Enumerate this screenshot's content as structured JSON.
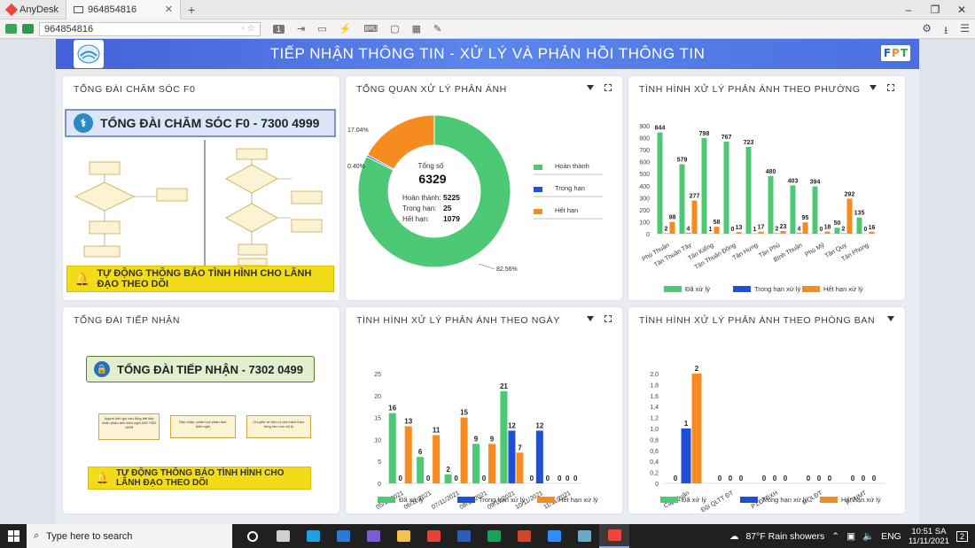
{
  "anydesk": {
    "app_name": "AnyDesk",
    "tab_label": "964854816",
    "address": "964854816",
    "page_number": "1"
  },
  "banner": {
    "title": "TIẾP NHẬN THÔNG TIN - XỬ LÝ VÀ PHẢN HỒI THÔNG TIN",
    "brand": [
      "F",
      "P",
      "T"
    ],
    "brand_colors": [
      "#1e60c8",
      "#f08a1c",
      "#2ca84c"
    ]
  },
  "panels": {
    "f0": {
      "title": "TỔNG ĐÀI CHĂM SÓC F0",
      "hotline": "TỔNG ĐÀI CHĂM SÓC F0 - 7300 4999",
      "alert": "TỰ ĐỘNG THÔNG BÁO TÌNH HÌNH CHO LÃNH ĐẠO THEO DÕI"
    },
    "reception": {
      "title": "TỔNG ĐÀI TIẾP NHẬN",
      "hotline": "TỔNG ĐÀI TIẾP NHẬN - 7302 0499",
      "alert": "TỰ ĐỘNG THÔNG BÁO TÌNH HÌNH CHO LÃNH ĐẠO THEO DÕI",
      "flow": [
        "Người dân gọi vào tổng đài tiếp nhận phản ánh kiến nghị 028 7302 0499",
        "Tiếp nhận, phân loại phản ánh, kiến nghị",
        "Chuyển về đơn vị chủ trách theo từng khu vực xử lý"
      ]
    },
    "overview": {
      "title": "TỔNG QUAN XỬ LÝ PHẢN ÁNH",
      "total_label": "Tổng số",
      "total": "6329",
      "rows": [
        {
          "label": "Hoàn thành:",
          "value": "5225"
        },
        {
          "label": "Trong hạn:",
          "value": "25"
        },
        {
          "label": "Hết hạn:",
          "value": "1079"
        }
      ]
    },
    "ward": {
      "title": "TÌNH HÌNH XỬ LÝ PHẢN ÁNH THEO PHƯỜNG"
    },
    "daily": {
      "title": "TÌNH HÌNH XỬ LÝ PHẢN ÁNH THEO NGÀY"
    },
    "dept": {
      "title": "TÌNH HÌNH XỬ LÝ PHẢN ÁNH THEO PHÒNG BAN"
    }
  },
  "colors": {
    "green": "#4dc875",
    "blue": "#1f4fd6",
    "orange": "#f68b1f"
  },
  "chart_data": [
    {
      "id": "overview",
      "type": "pie",
      "title": "TỔNG QUAN XỬ LÝ PHẢN ÁNH",
      "labels": [
        "Hoàn thành",
        "Trong hạn",
        "Hết hạn"
      ],
      "values": [
        5225,
        25,
        1079
      ],
      "percent_labels": [
        "82.56%",
        "0.40%",
        "17.04%"
      ]
    },
    {
      "id": "ward",
      "type": "bar",
      "title": "TÌNH HÌNH XỬ LÝ PHẢN ÁNH THEO PHƯỜNG",
      "categories": [
        "Phú Thuận",
        "Tân Thuận Tây",
        "Tân Kiểng",
        "Tân Thuận Đông",
        "Tân Hưng",
        "Tân Phú",
        "Bình Thuận",
        "Phú Mỹ",
        "Tân Quy",
        "Tân Phong"
      ],
      "series": [
        {
          "name": "Đã xử lý",
          "values": [
            844,
            579,
            798,
            767,
            723,
            480,
            403,
            394,
            50,
            135
          ]
        },
        {
          "name": "Trong hạn xử lý",
          "values": [
            2,
            4,
            1,
            0,
            1,
            2,
            4,
            0,
            2,
            0
          ]
        },
        {
          "name": "Hết hạn xử lý",
          "values": [
            98,
            277,
            58,
            13,
            17,
            23,
            95,
            18,
            292,
            16
          ]
        }
      ],
      "yticks": [
        0,
        100,
        200,
        300,
        400,
        500,
        600,
        700,
        800,
        900
      ],
      "ylim": [
        0,
        900
      ]
    },
    {
      "id": "daily",
      "type": "bar",
      "title": "TÌNH HÌNH XỬ LÝ PHẢN ÁNH THEO NGÀY",
      "categories": [
        "05/11/2021",
        "06/11/2021",
        "07/11/2021",
        "08/11/2021",
        "09/11/2021",
        "10/11/2021",
        "11/11/2021"
      ],
      "series": [
        {
          "name": "Đã xử lý",
          "values": [
            16,
            6,
            2,
            9,
            21,
            0,
            0
          ]
        },
        {
          "name": "Trong hạn xử lý",
          "values": [
            0,
            0,
            0,
            0,
            12,
            12,
            0
          ]
        },
        {
          "name": "Hết hạn xử lý",
          "values": [
            13,
            11,
            15,
            9,
            7,
            0,
            0
          ]
        }
      ],
      "yticks": [
        0,
        5,
        10,
        15,
        20,
        25
      ],
      "ylim": [
        0,
        25
      ]
    },
    {
      "id": "dept",
      "type": "bar",
      "title": "TÌNH HÌNH XỬ LÝ PHẢN ÁNH THEO PHÒNG BAN",
      "categories": [
        "Cấp Quận",
        "Đội QLTT ĐT",
        "P.LĐTBXH",
        "P.QLĐT",
        "P.TNMT"
      ],
      "series": [
        {
          "name": "Đã xử lý",
          "values": [
            0,
            0,
            0,
            0,
            0
          ]
        },
        {
          "name": "Trong hạn xử lý",
          "values": [
            1,
            0,
            0,
            0,
            0
          ]
        },
        {
          "name": "Hết hạn xử lý",
          "values": [
            2,
            0,
            0,
            0,
            0
          ]
        }
      ],
      "yticks": [
        "0",
        "0,2",
        "0,4",
        "0,6",
        "0,8",
        "1,0",
        "1,2",
        "1,4",
        "1,6",
        "1,8",
        "2,0"
      ],
      "ylim": [
        0,
        2
      ]
    }
  ],
  "taskbar": {
    "search_placeholder": "Type here to search",
    "weather": "87°F  Rain showers",
    "lang": "ENG",
    "time": "10:51 SA",
    "date": "11/11/2021",
    "notif": "2",
    "apps": [
      {
        "name": "task-view",
        "color": "#cfcfcf"
      },
      {
        "name": "edge",
        "color": "#1fa0e0"
      },
      {
        "name": "mail",
        "color": "#2b7bd6"
      },
      {
        "name": "viber",
        "color": "#7b5ed6"
      },
      {
        "name": "explorer",
        "color": "#f2c14e"
      },
      {
        "name": "chrome",
        "color": "#e54335"
      },
      {
        "name": "word",
        "color": "#2b5eb8"
      },
      {
        "name": "excel-like",
        "color": "#19a05a"
      },
      {
        "name": "powerpoint",
        "color": "#d24726"
      },
      {
        "name": "zoom",
        "color": "#2d8cff"
      },
      {
        "name": "app",
        "color": "#6aa9c9"
      },
      {
        "name": "anydesk",
        "color": "#ef443b"
      }
    ]
  }
}
